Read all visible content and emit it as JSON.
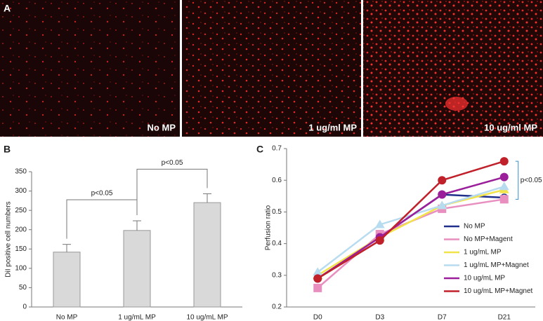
{
  "figure": {
    "panel_labels": [
      "A",
      "B",
      "C"
    ],
    "image_captions": [
      "No MP",
      "1 ug/ml MP",
      "10 ug/ml MP"
    ]
  },
  "chart_data": [
    {
      "type": "bar",
      "ylabel": "DiI positive cell numbers",
      "categories": [
        "No MP",
        "1 ug/mL MP",
        "10 ug/mL MP"
      ],
      "values": [
        142,
        198,
        270
      ],
      "errors": [
        20,
        25,
        23
      ],
      "color": "#d9d9d9",
      "ylim": [
        0,
        350
      ],
      "yticks": [
        0,
        50,
        100,
        150,
        200,
        250,
        300,
        350
      ],
      "annotations": [
        "p<0.05",
        "p<0.05"
      ]
    },
    {
      "type": "line",
      "ylabel": "Perfusion ratio",
      "categories": [
        "D0",
        "D3",
        "D7",
        "D21"
      ],
      "ylim": [
        0.2,
        0.7
      ],
      "yticks": [
        0.2,
        0.3,
        0.4,
        0.5,
        0.6,
        0.7
      ],
      "legend": "lower right",
      "annotations": [
        "p<0.05"
      ],
      "series": [
        {
          "name": "No MP",
          "color": "#1f2f8a",
          "marker": "circle-open",
          "values": [
            0.29,
            0.42,
            0.555,
            0.545
          ]
        },
        {
          "name": "No MP+Magent",
          "color": "#e88fc0",
          "marker": "square",
          "values": [
            0.26,
            0.43,
            0.51,
            0.54
          ]
        },
        {
          "name": "1 ug/mL MP",
          "color": "#f2e34a",
          "marker": "triangle",
          "values": [
            0.3,
            0.42,
            0.52,
            0.57
          ]
        },
        {
          "name": "1 ug/mL MP+Magnet",
          "color": "#b8dcef",
          "marker": "triangle",
          "values": [
            0.31,
            0.46,
            0.52,
            0.58
          ]
        },
        {
          "name": "10 ug/mL MP",
          "color": "#9b1f9b",
          "marker": "circle",
          "values": [
            0.29,
            0.42,
            0.555,
            0.61
          ]
        },
        {
          "name": "10 ug/mL MP+Magnet",
          "color": "#c0202a",
          "marker": "circle",
          "values": [
            0.29,
            0.41,
            0.6,
            0.66
          ]
        }
      ]
    }
  ]
}
